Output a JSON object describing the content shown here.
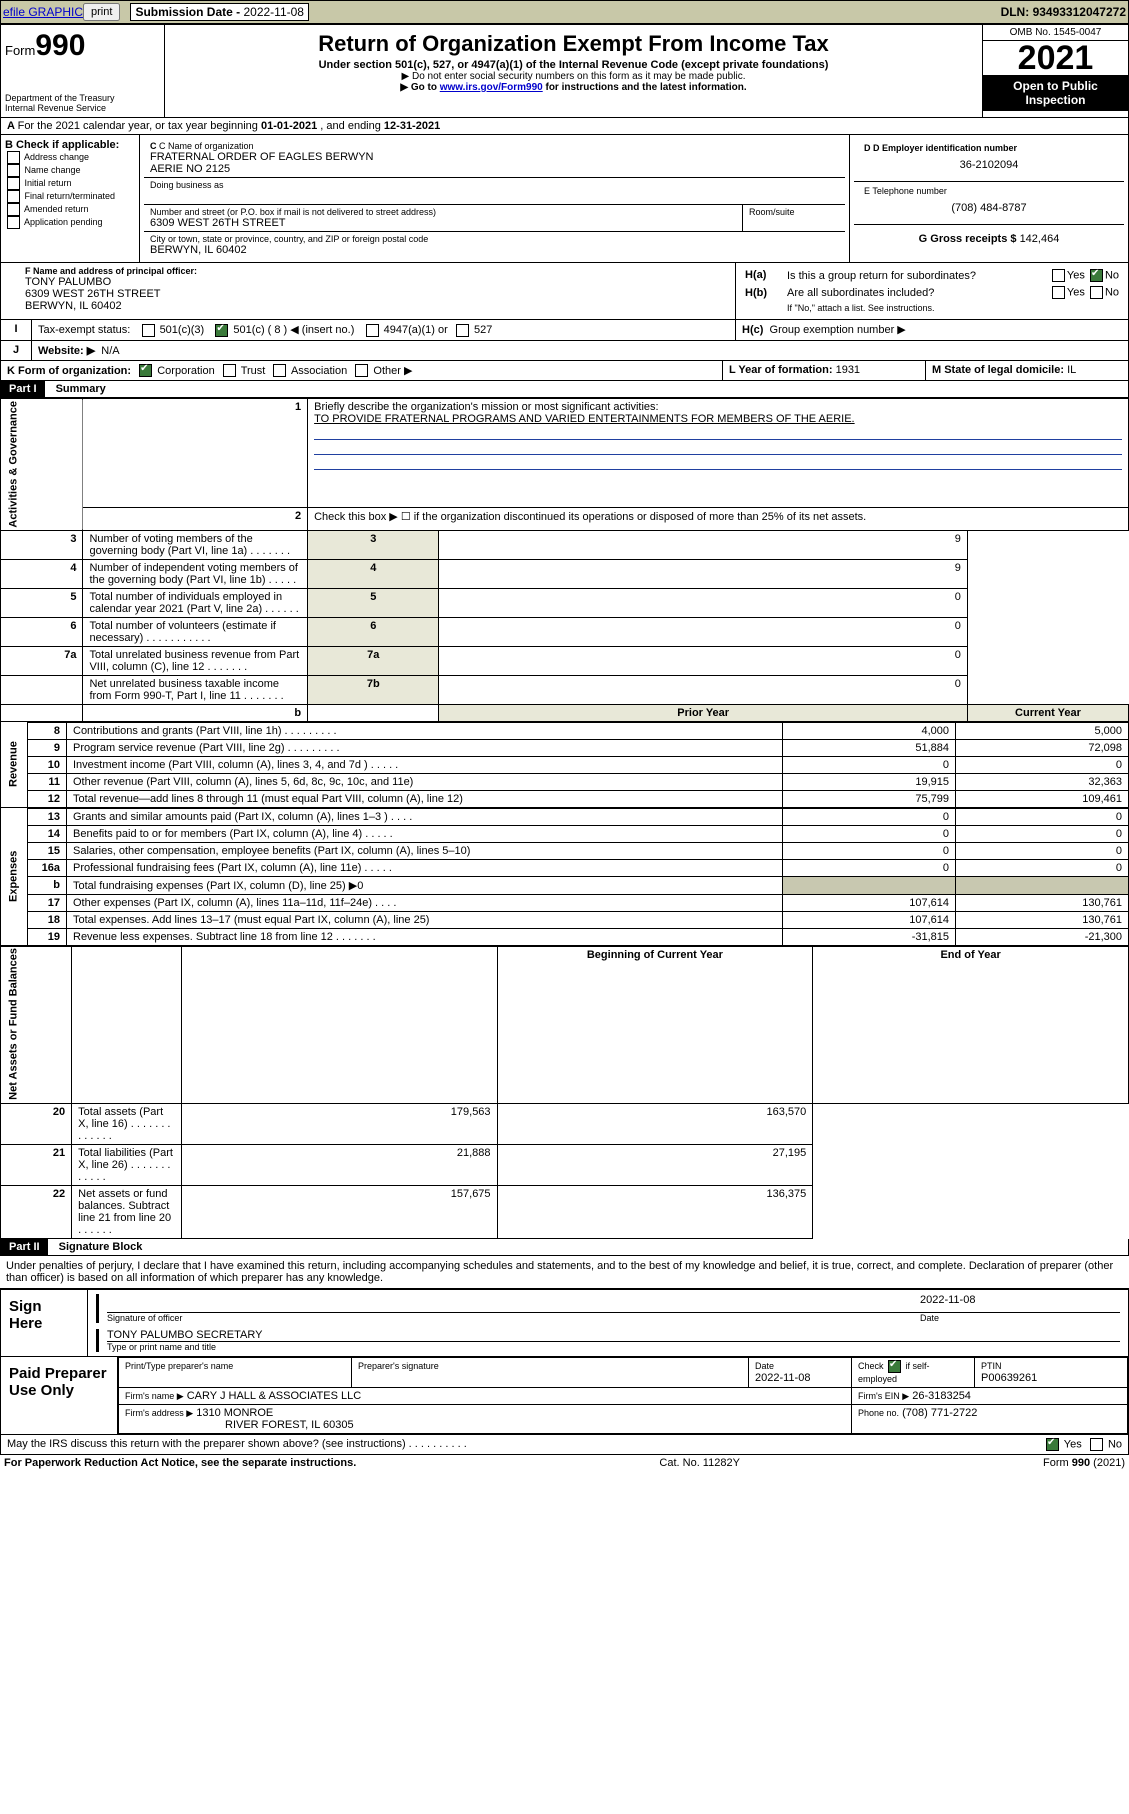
{
  "topbar": {
    "efile_label": "efile GRAPHIC",
    "print_label": "print",
    "submission_prefix": "Submission Date - ",
    "submission_date": "2022-11-08",
    "dln_prefix": "DLN: ",
    "dln": "93493312047272"
  },
  "header": {
    "form_label": "Form",
    "form_number": "990",
    "dept": "Department of the Treasury",
    "irs": "Internal Revenue Service",
    "title": "Return of Organization Exempt From Income Tax",
    "subtitle": "Under section 501(c), 527, or 4947(a)(1) of the Internal Revenue Code (except private foundations)",
    "note1": "▶ Do not enter social security numbers on this form as it may be made public.",
    "note2_pre": "▶ Go to ",
    "note2_link": "www.irs.gov/Form990",
    "note2_post": " for instructions and the latest information.",
    "omb": "OMB No. 1545-0047",
    "year": "2021",
    "inspect1": "Open to Public",
    "inspect2": "Inspection"
  },
  "lineA": {
    "text_pre": "For the 2021 calendar year, or tax year beginning ",
    "begin": "01-01-2021",
    "mid": " , and ending ",
    "end": "12-31-2021"
  },
  "boxB": {
    "title": "B Check if applicable:",
    "items": [
      "Address change",
      "Name change",
      "Initial return",
      "Final return/terminated",
      "Amended return",
      "Application pending"
    ]
  },
  "boxC": {
    "label": "C Name of organization",
    "name1": "FRATERNAL ORDER OF EAGLES BERWYN",
    "name2": "AERIE NO 2125",
    "dba_label": "Doing business as",
    "addr_label": "Number and street (or P.O. box if mail is not delivered to street address)",
    "room_label": "Room/suite",
    "street": "6309 WEST 26TH STREET",
    "city_label": "City or town, state or province, country, and ZIP or foreign postal code",
    "city": "BERWYN, IL  60402"
  },
  "boxD": {
    "label": "D Employer identification number",
    "ein": "36-2102094"
  },
  "boxE": {
    "label": "E Telephone number",
    "phone": "(708) 484-8787"
  },
  "boxG": {
    "label": "G Gross receipts $",
    "amount": "142,464"
  },
  "boxF": {
    "label": "F Name and address of principal officer:",
    "name": "TONY PALUMBO",
    "street": "6309 WEST 26TH STREET",
    "city": "BERWYN, IL  60402"
  },
  "boxH": {
    "ha": "Is this a group return for subordinates?",
    "hb": "Are all subordinates included?",
    "ifno": "If \"No,\" attach a list. See instructions.",
    "hc": "Group exemption number ▶",
    "yes": "Yes",
    "no": "No"
  },
  "boxI": {
    "label": "Tax-exempt status:",
    "c3": "501(c)(3)",
    "c": "501(c) ( 8 ) ◀ (insert no.)",
    "a1": "4947(a)(1) or",
    "s527": "527"
  },
  "boxJ": {
    "label": "Website: ▶",
    "value": "N/A"
  },
  "boxK": {
    "label": "K Form of organization:",
    "corp": "Corporation",
    "trust": "Trust",
    "assoc": "Association",
    "other": "Other ▶"
  },
  "boxL": {
    "label": "L Year of formation:",
    "value": "1931"
  },
  "boxM": {
    "label": "M State of legal domicile:",
    "value": "IL"
  },
  "part1": {
    "title": "Part I",
    "subtitle": "Summary",
    "side_act": "Activities & Governance",
    "side_rev": "Revenue",
    "side_exp": "Expenses",
    "side_net": "Net Assets or Fund Balances",
    "q1": "Briefly describe the organization's mission or most significant activities:",
    "mission": "TO PROVIDE FRATERNAL PROGRAMS AND VARIED ENTERTAINMENTS FOR MEMBERS OF THE AERIE.",
    "q2": "Check this box ▶ ☐  if the organization discontinued its operations or disposed of more than 25% of its net assets.",
    "prior": "Prior Year",
    "current": "Current Year",
    "begin": "Beginning of Current Year",
    "end": "End of Year",
    "rows_top": [
      {
        "n": "3",
        "label": "Number of voting members of the governing body (Part VI, line 1a)  .   .   .   .   .   .   .",
        "box": "3",
        "val": "9"
      },
      {
        "n": "4",
        "label": "Number of independent voting members of the governing body (Part VI, line 1b)  .   .   .   .   .",
        "box": "4",
        "val": "9"
      },
      {
        "n": "5",
        "label": "Total number of individuals employed in calendar year 2021 (Part V, line 2a)  .   .   .   .   .   .",
        "box": "5",
        "val": "0"
      },
      {
        "n": "6",
        "label": "Total number of volunteers (estimate if necessary)  .   .   .   .   .   .   .   .   .   .   .",
        "box": "6",
        "val": "0"
      },
      {
        "n": "7a",
        "label": "Total unrelated business revenue from Part VIII, column (C), line 12  .   .   .   .   .   .   .",
        "box": "7a",
        "val": "0"
      },
      {
        "n": "",
        "label": "Net unrelated business taxable income from Form 990-T, Part I, line 11  .   .   .   .   .   .   .",
        "box": "7b",
        "val": "0"
      }
    ],
    "rows_rev": [
      {
        "n": "8",
        "label": "Contributions and grants (Part VIII, line 1h)  .   .   .   .   .   .   .   .   .",
        "p": "4,000",
        "c": "5,000"
      },
      {
        "n": "9",
        "label": "Program service revenue (Part VIII, line 2g)  .   .   .   .   .   .   .   .   .",
        "p": "51,884",
        "c": "72,098"
      },
      {
        "n": "10",
        "label": "Investment income (Part VIII, column (A), lines 3, 4, and 7d )  .   .   .   .   .",
        "p": "0",
        "c": "0"
      },
      {
        "n": "11",
        "label": "Other revenue (Part VIII, column (A), lines 5, 6d, 8c, 9c, 10c, and 11e)",
        "p": "19,915",
        "c": "32,363"
      },
      {
        "n": "12",
        "label": "Total revenue—add lines 8 through 11 (must equal Part VIII, column (A), line 12)",
        "p": "75,799",
        "c": "109,461"
      }
    ],
    "rows_exp": [
      {
        "n": "13",
        "label": "Grants and similar amounts paid (Part IX, column (A), lines 1–3 )  .   .   .   .",
        "p": "0",
        "c": "0"
      },
      {
        "n": "14",
        "label": "Benefits paid to or for members (Part IX, column (A), line 4)  .   .   .   .   .",
        "p": "0",
        "c": "0"
      },
      {
        "n": "15",
        "label": "Salaries, other compensation, employee benefits (Part IX, column (A), lines 5–10)",
        "p": "0",
        "c": "0"
      },
      {
        "n": "16a",
        "label": "Professional fundraising fees (Part IX, column (A), line 11e)  .   .   .   .   .",
        "p": "0",
        "c": "0"
      },
      {
        "n": "b",
        "label": "Total fundraising expenses (Part IX, column (D), line 25) ▶0",
        "p": "",
        "c": "",
        "shade": true
      },
      {
        "n": "17",
        "label": "Other expenses (Part IX, column (A), lines 11a–11d, 11f–24e)  .   .   .   .",
        "p": "107,614",
        "c": "130,761"
      },
      {
        "n": "18",
        "label": "Total expenses. Add lines 13–17 (must equal Part IX, column (A), line 25)",
        "p": "107,614",
        "c": "130,761"
      },
      {
        "n": "19",
        "label": "Revenue less expenses. Subtract line 18 from line 12  .   .   .   .   .   .   .",
        "p": "-31,815",
        "c": "-21,300"
      }
    ],
    "rows_net": [
      {
        "n": "20",
        "label": "Total assets (Part X, line 16)  .   .   .   .   .   .   .   .   .   .   .   .   .",
        "p": "179,563",
        "c": "163,570"
      },
      {
        "n": "21",
        "label": "Total liabilities (Part X, line 26)  .   .   .   .   .   .   .   .   .   .   .   .",
        "p": "21,888",
        "c": "27,195"
      },
      {
        "n": "22",
        "label": "Net assets or fund balances. Subtract line 21 from line 20  .   .   .   .   .   .",
        "p": "157,675",
        "c": "136,375"
      }
    ]
  },
  "part2": {
    "title": "Part II",
    "subtitle": "Signature Block",
    "penalty": "Under penalties of perjury, I declare that I have examined this return, including accompanying schedules and statements, and to the best of my knowledge and belief, it is true, correct, and complete. Declaration of preparer (other than officer) is based on all information of which preparer has any knowledge.",
    "sign_here": "Sign Here",
    "sig_officer": "Signature of officer",
    "date": "Date",
    "sig_date": "2022-11-08",
    "officer": "TONY PALUMBO  SECRETARY",
    "type_name": "Type or print name and title",
    "paid": "Paid Preparer Use Only",
    "pt_name": "Print/Type preparer's name",
    "pt_sig": "Preparer's signature",
    "pt_date": "Date",
    "pt_date_v": "2022-11-08",
    "pt_check": "Check ☑ if self-employed",
    "ptin": "PTIN",
    "ptin_v": "P00639261",
    "firm_name": "Firm's name    ▶",
    "firm_name_v": "CARY J HALL & ASSOCIATES LLC",
    "firm_ein": "Firm's EIN ▶",
    "firm_ein_v": "26-3183254",
    "firm_addr": "Firm's address ▶",
    "firm_addr_v1": "1310 MONROE",
    "firm_addr_v2": "RIVER FOREST, IL  60305",
    "phone": "Phone no.",
    "phone_v": "(708) 771-2722",
    "may": "May the IRS discuss this return with the preparer shown above? (see instructions)  .   .   .   .   .   .   .   .   .   .",
    "yes": "Yes",
    "no": "No"
  },
  "footer": {
    "left": "For Paperwork Reduction Act Notice, see the separate instructions.",
    "mid": "Cat. No. 11282Y",
    "right": "Form 990 (2021)"
  }
}
